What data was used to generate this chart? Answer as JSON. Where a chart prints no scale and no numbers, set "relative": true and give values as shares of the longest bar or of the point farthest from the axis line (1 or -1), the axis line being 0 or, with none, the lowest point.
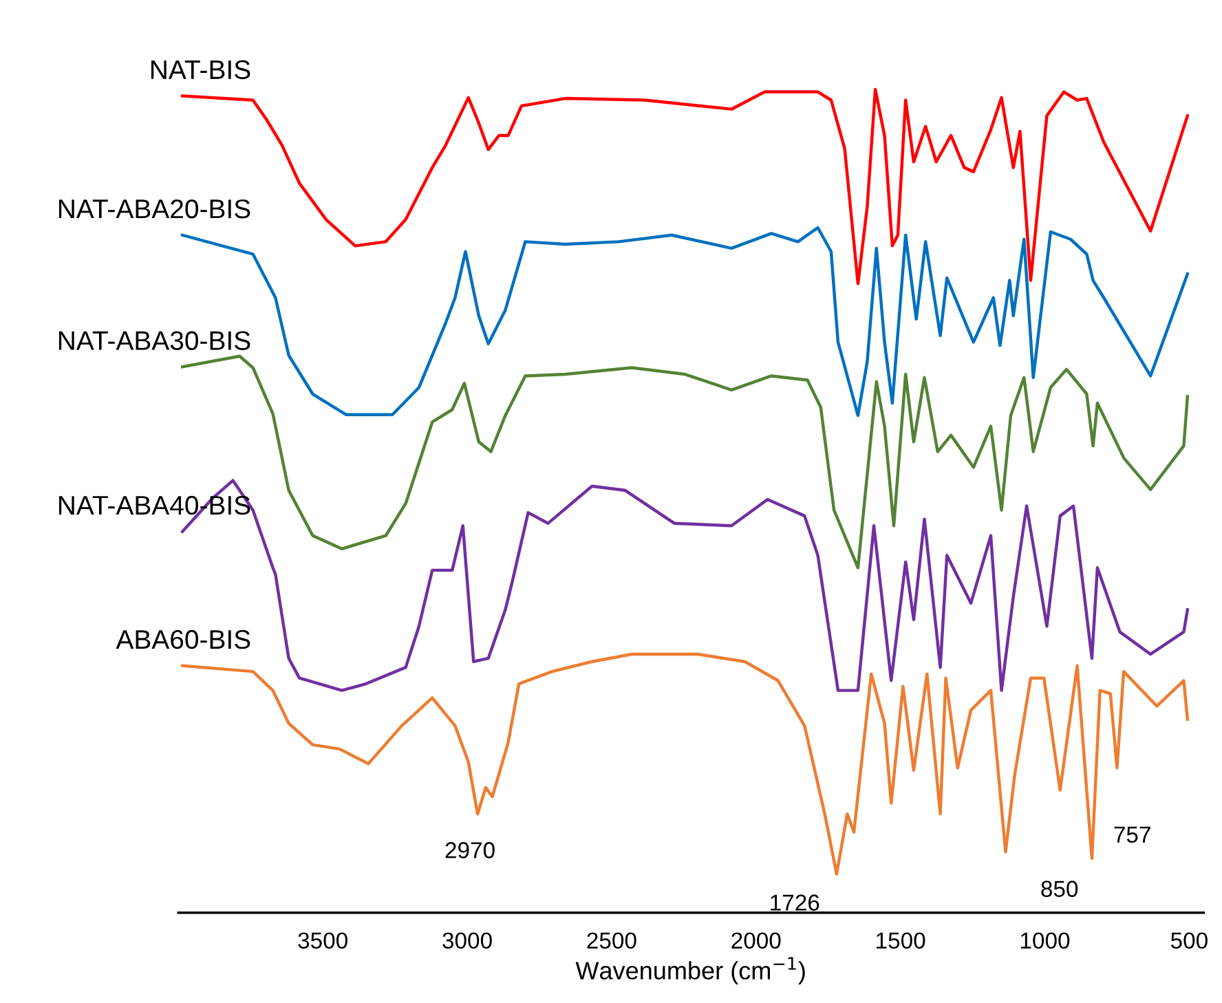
{
  "chart_data": {
    "type": "line",
    "xlabel": "Wavenumber (cm$^{−1}$)",
    "xlim": [
      4000,
      450
    ],
    "xticks": [
      3500,
      3000,
      2500,
      2000,
      1500,
      1000,
      500
    ],
    "relative": true,
    "tick_labels": "x",
    "series": [
      {
        "name": "NAT-BIS",
        "color": "#ff0000",
        "x": [
          3986,
          3742,
          3696,
          3641,
          3581,
          3489,
          3388,
          3282,
          3213,
          3121,
          3075,
          2996,
          2960,
          2927,
          2890,
          2858,
          2812,
          2660,
          2384,
          2085,
          1970,
          1786,
          1740,
          1693,
          1647,
          1615,
          1587,
          1555,
          1528,
          1509,
          1482,
          1454,
          1413,
          1376,
          1325,
          1279,
          1247,
          1187,
          1150,
          1109,
          1086,
          1049,
          993,
          934,
          888,
          855,
          796,
          634,
          506
        ],
        "values": [
          0.992,
          0.987,
          0.964,
          0.932,
          0.886,
          0.842,
          0.81,
          0.815,
          0.842,
          0.905,
          0.932,
          0.99,
          0.959,
          0.927,
          0.944,
          0.944,
          0.98,
          0.989,
          0.987,
          0.976,
          0.997,
          0.997,
          0.987,
          0.928,
          0.764,
          0.857,
          1.0,
          0.944,
          0.81,
          0.823,
          0.987,
          0.912,
          0.955,
          0.912,
          0.944,
          0.905,
          0.9,
          0.951,
          0.99,
          0.905,
          0.949,
          0.768,
          0.968,
          0.997,
          0.987,
          0.989,
          0.936,
          0.828,
          0.968
        ]
      },
      {
        "name": "NAT-ABA20-BIS",
        "color": "#0070c0",
        "x": [
          3986,
          3742,
          3664,
          3618,
          3535,
          3420,
          3259,
          3167,
          3075,
          3042,
          3006,
          2960,
          2927,
          2868,
          2799,
          2660,
          2476,
          2292,
          2085,
          1947,
          1855,
          1786,
          1740,
          1716,
          1647,
          1615,
          1583,
          1555,
          1528,
          1482,
          1445,
          1413,
          1362,
          1339,
          1247,
          1178,
          1155,
          1122,
          1109,
          1072,
          1040,
          980,
          911,
          855,
          833,
          796,
          634,
          506
        ],
        "values": [
          0.823,
          0.8,
          0.747,
          0.677,
          0.63,
          0.605,
          0.605,
          0.638,
          0.716,
          0.747,
          0.803,
          0.725,
          0.691,
          0.732,
          0.815,
          0.812,
          0.815,
          0.823,
          0.807,
          0.825,
          0.815,
          0.832,
          0.803,
          0.693,
          0.604,
          0.669,
          0.807,
          0.693,
          0.619,
          0.823,
          0.721,
          0.815,
          0.701,
          0.771,
          0.693,
          0.747,
          0.689,
          0.768,
          0.725,
          0.818,
          0.65,
          0.827,
          0.818,
          0.8,
          0.768,
          0.747,
          0.652,
          0.776
        ]
      },
      {
        "name": "NAT-ABA30-BIS",
        "color": "#548235",
        "x": [
          3986,
          3788,
          3742,
          3673,
          3618,
          3535,
          3434,
          3282,
          3213,
          3121,
          3052,
          3010,
          2960,
          2918,
          2868,
          2799,
          2660,
          2430,
          2246,
          2085,
          1947,
          1822,
          1776,
          1730,
          1647,
          1583,
          1555,
          1523,
          1482,
          1454,
          1417,
          1371,
          1325,
          1247,
          1187,
          1150,
          1118,
          1072,
          1040,
          980,
          925,
          855,
          833,
          818,
          726,
          634,
          519,
          506
        ],
        "values": [
          0.663,
          0.676,
          0.662,
          0.606,
          0.513,
          0.458,
          0.442,
          0.458,
          0.497,
          0.596,
          0.611,
          0.643,
          0.572,
          0.56,
          0.604,
          0.652,
          0.654,
          0.662,
          0.654,
          0.635,
          0.652,
          0.647,
          0.614,
          0.489,
          0.419,
          0.645,
          0.591,
          0.47,
          0.654,
          0.572,
          0.65,
          0.56,
          0.58,
          0.541,
          0.591,
          0.489,
          0.604,
          0.65,
          0.56,
          0.638,
          0.66,
          0.63,
          0.567,
          0.619,
          0.552,
          0.514,
          0.567,
          0.627
        ]
      },
      {
        "name": "NAT-ABA40-BIS",
        "color": "#7030a0",
        "x": [
          3986,
          3880,
          3811,
          3742,
          3673,
          3664,
          3618,
          3581,
          3434,
          3351,
          3213,
          3167,
          3121,
          3052,
          3015,
          2978,
          2927,
          2868,
          2844,
          2789,
          2720,
          2568,
          2453,
          2283,
          2085,
          1960,
          1832,
          1786,
          1716,
          1647,
          1592,
          1532,
          1482,
          1454,
          1417,
          1362,
          1339,
          1256,
          1187,
          1150,
          1109,
          1063,
          993,
          947,
          901,
          837,
          818,
          740,
          634,
          519,
          506
        ],
        "values": [
          0.463,
          0.504,
          0.525,
          0.489,
          0.419,
          0.411,
          0.309,
          0.285,
          0.27,
          0.278,
          0.298,
          0.348,
          0.416,
          0.416,
          0.47,
          0.305,
          0.309,
          0.368,
          0.402,
          0.486,
          0.473,
          0.518,
          0.513,
          0.473,
          0.47,
          0.502,
          0.482,
          0.434,
          0.27,
          0.27,
          0.47,
          0.282,
          0.426,
          0.356,
          0.478,
          0.298,
          0.434,
          0.376,
          0.458,
          0.27,
          0.384,
          0.494,
          0.348,
          0.482,
          0.494,
          0.309,
          0.419,
          0.341,
          0.314,
          0.341,
          0.368
        ]
      },
      {
        "name": "ABA60-BIS",
        "color": "#ed7d31",
        "x": [
          3986,
          3742,
          3673,
          3618,
          3535,
          3443,
          3342,
          3227,
          3121,
          3042,
          2996,
          2964,
          2936,
          2913,
          2858,
          2821,
          2706,
          2568,
          2430,
          2200,
          2039,
          1924,
          1832,
          1762,
          1721,
          1684,
          1661,
          1601,
          1555,
          1532,
          1491,
          1454,
          1408,
          1362,
          1343,
          1302,
          1256,
          1187,
          1136,
          1104,
          1049,
          1003,
          947,
          888,
          837,
          809,
          773,
          750,
          727,
          612,
          519,
          506
        ],
        "values": [
          0.3,
          0.293,
          0.27,
          0.23,
          0.204,
          0.199,
          0.181,
          0.227,
          0.261,
          0.227,
          0.183,
          0.12,
          0.152,
          0.141,
          0.207,
          0.278,
          0.293,
          0.305,
          0.314,
          0.314,
          0.305,
          0.282,
          0.227,
          0.12,
          0.047,
          0.12,
          0.098,
          0.29,
          0.23,
          0.133,
          0.275,
          0.173,
          0.29,
          0.12,
          0.285,
          0.176,
          0.246,
          0.27,
          0.074,
          0.168,
          0.285,
          0.285,
          0.149,
          0.3,
          0.066,
          0.27,
          0.266,
          0.176,
          0.293,
          0.251,
          0.282,
          0.235
        ]
      }
    ],
    "annotations": [
      {
        "text": "2970",
        "x": 2964,
        "y": 0.12
      },
      {
        "text": "1726",
        "x": 1721,
        "y": 0.047
      },
      {
        "text": "850",
        "x": 837,
        "y": 0.066
      },
      {
        "text": "757",
        "x": 750,
        "y": 0.176
      }
    ]
  }
}
